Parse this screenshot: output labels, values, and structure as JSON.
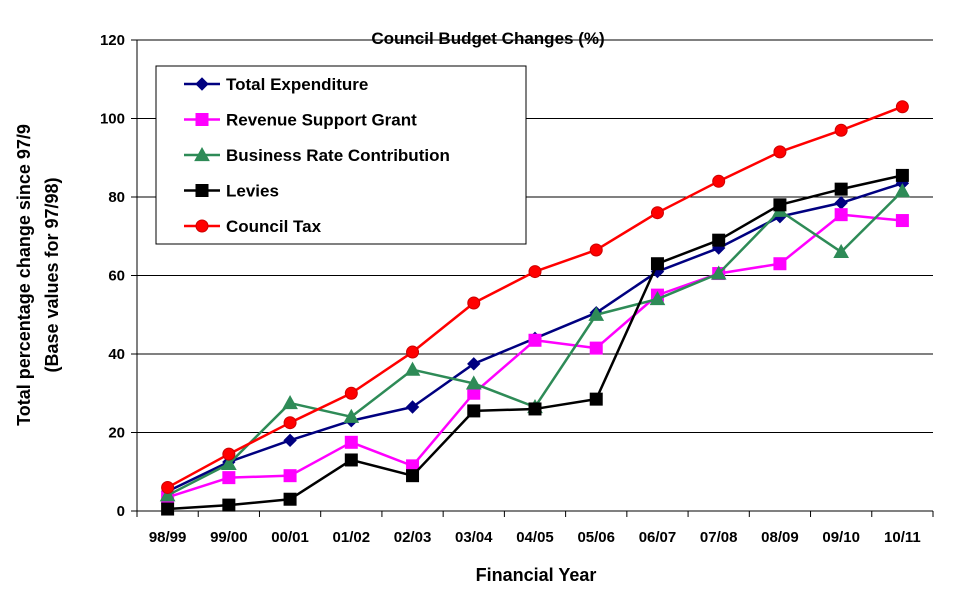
{
  "chart_data": {
    "type": "line",
    "title": "Council Budget Changes (%)",
    "xlabel": "Financial Year",
    "ylabel_line1": "Total percentage change since 97/9",
    "ylabel_line2": "(Base values for 97/98)",
    "categories": [
      "98/99",
      "99/00",
      "00/01",
      "01/02",
      "02/03",
      "03/04",
      "04/05",
      "05/06",
      "06/07",
      "07/08",
      "08/09",
      "09/10",
      "10/11"
    ],
    "ylim": [
      0,
      120
    ],
    "yticks": [
      "0",
      "20",
      "40",
      "60",
      "80",
      "100",
      "120"
    ],
    "grid": true,
    "legend_position": "top-left",
    "series": [
      {
        "name": "Total Expenditure",
        "color": "#000080",
        "marker": "diamond",
        "values": [
          5,
          12.5,
          18,
          23,
          26.5,
          37.5,
          44,
          50.5,
          61,
          67,
          75,
          78.5,
          83.5
        ]
      },
      {
        "name": "Revenue Support Grant",
        "color": "#ff00ff",
        "marker": "square",
        "values": [
          3.5,
          8.5,
          9,
          17.5,
          11.5,
          30,
          43.5,
          41.5,
          55,
          60.5,
          63,
          75.5,
          74
        ]
      },
      {
        "name": "Business Rate Contribution",
        "color": "#2e8b57",
        "marker": "triangle",
        "values": [
          4,
          12,
          27.5,
          24,
          36,
          32.5,
          26.5,
          50,
          54,
          60.5,
          76.5,
          66,
          81.5
        ]
      },
      {
        "name": "Levies",
        "color": "#000000",
        "marker": "square",
        "values": [
          0.5,
          1.5,
          3,
          13,
          9,
          25.5,
          26,
          28.5,
          63,
          69,
          78,
          82,
          85.5
        ]
      },
      {
        "name": "Council Tax",
        "color": "#ff0000",
        "marker": "circle",
        "values": [
          6,
          14.5,
          22.5,
          30,
          40.5,
          53,
          61,
          66.5,
          76,
          84,
          91.5,
          97,
          103
        ]
      }
    ]
  }
}
